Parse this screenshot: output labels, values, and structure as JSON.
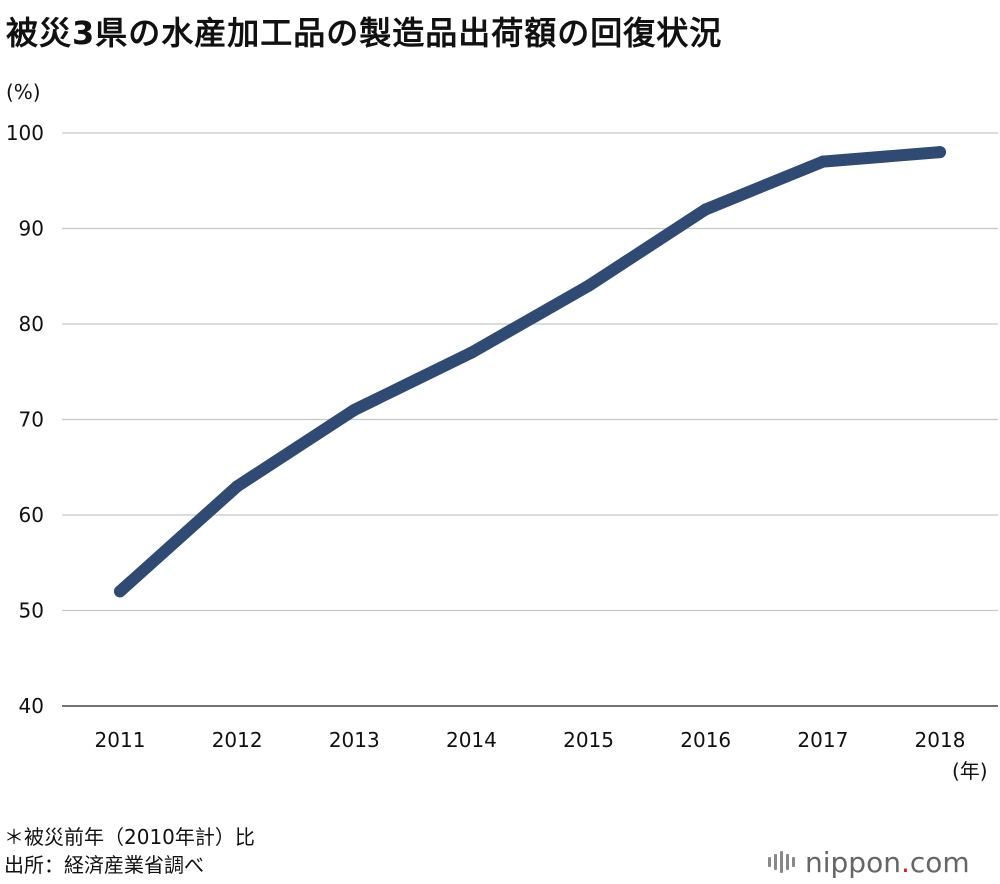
{
  "title": "被災3県の水産加工品の製造品出荷額の回復状況",
  "y_unit": "(%)",
  "x_unit": "(年)",
  "notes": [
    "＊被災前年（2010年計）比",
    "出所：経済産業省調べ"
  ],
  "brand": {
    "name": "nippon",
    "dot": ".",
    "tld": "com",
    "dot_color": "#d9261c"
  },
  "colors": {
    "line": "#2f4a73",
    "grid": "#c8c8c8",
    "axis": "#444444"
  },
  "chart_data": {
    "type": "line",
    "title": "被災3県の水産加工品の製造品出荷額の回復状況",
    "xlabel": "(年)",
    "ylabel": "(%)",
    "categories": [
      "2011",
      "2012",
      "2013",
      "2014",
      "2015",
      "2016",
      "2017",
      "2018"
    ],
    "series": [
      {
        "values": [
          52,
          63,
          71,
          77,
          84,
          92,
          97,
          98
        ]
      }
    ],
    "ylim": [
      40,
      100
    ],
    "yticks": [
      100,
      90,
      80,
      70,
      60,
      50,
      40
    ],
    "grid": true,
    "legend": "none"
  }
}
